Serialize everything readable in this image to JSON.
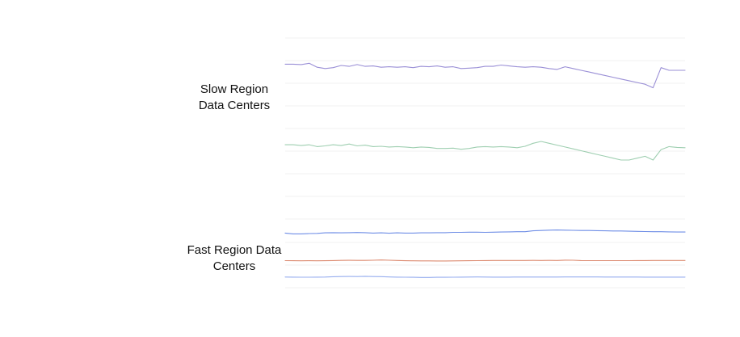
{
  "chart_data": {
    "type": "line",
    "title": "",
    "xlabel": "",
    "ylabel": "",
    "grid": true,
    "x": [
      0,
      2,
      4,
      6,
      8,
      10,
      12,
      14,
      16,
      18,
      20,
      22,
      24,
      26,
      28,
      30,
      32,
      34,
      36,
      38,
      40,
      42,
      44,
      46,
      48,
      50,
      52,
      54,
      56,
      58,
      60,
      62,
      64,
      66,
      68,
      70,
      72,
      74,
      76,
      78,
      80,
      82,
      84,
      86,
      88,
      90,
      92,
      94,
      96,
      98,
      100
    ],
    "groups": [
      {
        "label": "Slow Region\nData Centers",
        "ylim": [
          0,
          100
        ],
        "series": [
          {
            "color": "#9a8fd6",
            "values": [
              90,
              90,
              89,
              92,
              83,
              80,
              82,
              87,
              85,
              89,
              85,
              86,
              83,
              84,
              83,
              84,
              82,
              85,
              84,
              86,
              83,
              84,
              80,
              81,
              82,
              85,
              85,
              88,
              86,
              84,
              83,
              84,
              83,
              80,
              78,
              84,
              80,
              76,
              72,
              68,
              64,
              60,
              56,
              52,
              48,
              44,
              36,
              82,
              76,
              76,
              76
            ]
          },
          {
            "color": "#9fcfb1",
            "values": [
              41,
              41,
              39,
              41,
              36,
              38,
              41,
              39,
              43,
              38,
              40,
              36,
              37,
              35,
              36,
              35,
              33,
              35,
              34,
              31,
              31,
              32,
              29,
              31,
              35,
              36,
              35,
              36,
              35,
              33,
              37,
              45,
              50,
              45,
              40,
              35,
              30,
              25,
              20,
              15,
              10,
              5,
              0,
              0,
              5,
              10,
              0,
              28,
              36,
              34,
              33
            ]
          }
        ]
      },
      {
        "label": "Fast Region Data\nCenters",
        "ylim": [
          0,
          100
        ],
        "series": [
          {
            "color": "#6f8ee6",
            "values": [
              84,
              79,
              79,
              81,
              82,
              85,
              86,
              85,
              86,
              87,
              86,
              84,
              85,
              83,
              85,
              84,
              84,
              85,
              85,
              86,
              86,
              88,
              88,
              89,
              89,
              88,
              89,
              90,
              91,
              92,
              92,
              97,
              99,
              101,
              102,
              101,
              100,
              99,
              99,
              98,
              97,
              96,
              96,
              95,
              94,
              93,
              92,
              92,
              91,
              90,
              90
            ]
          },
          {
            "color": "#dd8c72",
            "values": [
              59,
              58,
              57,
              58,
              57,
              58,
              60,
              62,
              63,
              62,
              62,
              64,
              66,
              64,
              61,
              58,
              57,
              56,
              56,
              55,
              55,
              56,
              57,
              58,
              59,
              60,
              61,
              61,
              61,
              61,
              61,
              62,
              61,
              62,
              61,
              65,
              64,
              60,
              59,
              59,
              59,
              59,
              59,
              59,
              60,
              60,
              61,
              61,
              61,
              61,
              61
            ]
          },
          {
            "color": "#97aeef",
            "values": [
              38,
              37,
              36,
              36,
              37,
              38,
              42,
              44,
              45,
              44,
              46,
              44,
              43,
              39,
              37,
              36,
              35,
              34,
              34,
              35,
              35,
              36,
              37,
              38,
              39,
              38,
              37,
              37,
              37,
              38,
              38,
              38,
              38,
              38,
              38,
              39,
              39,
              39,
              39,
              39,
              38,
              38,
              38,
              38,
              38,
              37,
              37,
              37,
              37,
              37,
              37
            ]
          }
        ]
      }
    ]
  }
}
